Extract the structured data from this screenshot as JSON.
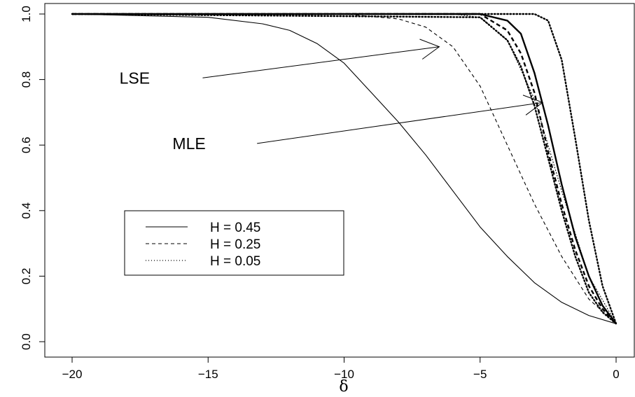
{
  "chart_data": {
    "type": "line",
    "title": "",
    "xlabel": "δ",
    "ylabel": "",
    "xlim": [
      -20,
      0
    ],
    "ylim": [
      0,
      1
    ],
    "x_ticks": [
      -20,
      -15,
      -10,
      -5,
      0
    ],
    "y_ticks": [
      0.0,
      0.2,
      0.4,
      0.6,
      0.8,
      1.0
    ],
    "x_tick_labels": [
      "−20",
      "−15",
      "−10",
      "−5",
      "0"
    ],
    "y_tick_labels": [
      "0.0",
      "0.2",
      "0.4",
      "0.6",
      "0.8",
      "1.0"
    ],
    "grid": false,
    "legend_position": "center-left",
    "legend": [
      {
        "label": "H = 0.45",
        "style": "solid"
      },
      {
        "label": "H = 0.25",
        "style": "dashed"
      },
      {
        "label": "H = 0.05",
        "style": "dotted"
      }
    ],
    "series": [
      {
        "group": "LSE",
        "style": "solid",
        "width": "thin",
        "points": [
          [
            -20,
            1.0
          ],
          [
            -15,
            0.99
          ],
          [
            -13,
            0.97
          ],
          [
            -12,
            0.95
          ],
          [
            -11,
            0.91
          ],
          [
            -10,
            0.85
          ],
          [
            -9,
            0.76
          ],
          [
            -8,
            0.67
          ],
          [
            -7,
            0.57
          ],
          [
            -6,
            0.46
          ],
          [
            -5,
            0.35
          ],
          [
            -4,
            0.26
          ],
          [
            -3,
            0.18
          ],
          [
            -2,
            0.12
          ],
          [
            -1,
            0.08
          ],
          [
            0,
            0.055
          ]
        ]
      },
      {
        "group": "LSE",
        "style": "dashed",
        "width": "thin",
        "points": [
          [
            -20,
            1.0
          ],
          [
            -10,
            1.0
          ],
          [
            -8,
            0.985
          ],
          [
            -7,
            0.96
          ],
          [
            -6,
            0.9
          ],
          [
            -5,
            0.78
          ],
          [
            -4,
            0.6
          ],
          [
            -3,
            0.42
          ],
          [
            -2,
            0.26
          ],
          [
            -1,
            0.13
          ],
          [
            0,
            0.055
          ]
        ]
      },
      {
        "group": "LSE",
        "style": "dotted",
        "width": "thin",
        "points": [
          [
            -20,
            1.0
          ],
          [
            -6,
            1.0
          ],
          [
            -5,
            0.99
          ],
          [
            -4,
            0.92
          ],
          [
            -3,
            0.74
          ],
          [
            -2,
            0.46
          ],
          [
            -1,
            0.2
          ],
          [
            0,
            0.055
          ]
        ]
      },
      {
        "group": "MLE",
        "style": "solid",
        "width": "thick",
        "points": [
          [
            -20,
            1.0
          ],
          [
            -5,
            1.0
          ],
          [
            -4,
            0.98
          ],
          [
            -3.5,
            0.94
          ],
          [
            -3,
            0.82
          ],
          [
            -2.5,
            0.66
          ],
          [
            -2,
            0.48
          ],
          [
            -1.5,
            0.32
          ],
          [
            -1,
            0.2
          ],
          [
            -0.5,
            0.11
          ],
          [
            0,
            0.055
          ]
        ]
      },
      {
        "group": "MLE",
        "style": "dashed",
        "width": "thick",
        "points": [
          [
            -20,
            1.0
          ],
          [
            -5,
            1.0
          ],
          [
            -4,
            0.95
          ],
          [
            -3.5,
            0.88
          ],
          [
            -3,
            0.76
          ],
          [
            -2.5,
            0.58
          ],
          [
            -2,
            0.42
          ],
          [
            -1.5,
            0.28
          ],
          [
            -1,
            0.17
          ],
          [
            -0.5,
            0.1
          ],
          [
            0,
            0.055
          ]
        ]
      },
      {
        "group": "MLE",
        "style": "dotted",
        "width": "thick",
        "points": [
          [
            -20,
            1.0
          ],
          [
            -5,
            0.99
          ],
          [
            -4,
            0.92
          ],
          [
            -3.5,
            0.84
          ],
          [
            -3,
            0.72
          ],
          [
            -2.5,
            0.56
          ],
          [
            -2,
            0.4
          ],
          [
            -1.5,
            0.26
          ],
          [
            -1,
            0.15
          ],
          [
            -0.5,
            0.09
          ],
          [
            0,
            0.055
          ]
        ]
      },
      {
        "group": "MLE-H0.05",
        "style": "dotted",
        "width": "thick",
        "points": [
          [
            -20,
            1.0
          ],
          [
            -3,
            1.0
          ],
          [
            -2.5,
            0.98
          ],
          [
            -2,
            0.86
          ],
          [
            -1.5,
            0.62
          ],
          [
            -1,
            0.37
          ],
          [
            -0.5,
            0.17
          ],
          [
            0,
            0.055
          ]
        ]
      }
    ],
    "annotations": [
      {
        "text": "LSE",
        "label_at": [
          -17.7,
          0.805
        ],
        "line_from": [
          -15.2,
          0.805
        ],
        "arrow_to": [
          -6.5,
          0.9
        ]
      },
      {
        "text": "MLE",
        "label_at": [
          -15.7,
          0.605
        ],
        "line_from": [
          -13.2,
          0.605
        ],
        "arrow_to": [
          -2.7,
          0.73
        ]
      }
    ]
  }
}
